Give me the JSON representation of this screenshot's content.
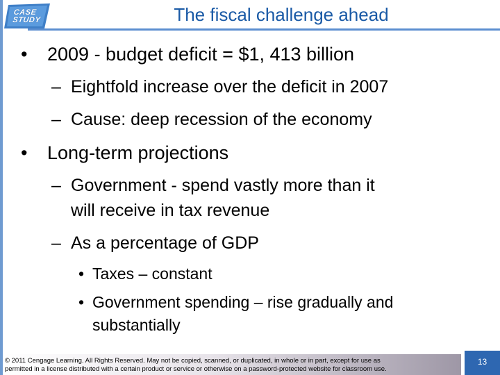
{
  "logo": {
    "line1": "CASE",
    "line2": "STUDY"
  },
  "title": "The fiscal challenge ahead",
  "bullets": [
    {
      "marker": "•",
      "text": "2009 - budget deficit = $1, 413 billion"
    },
    {
      "marker": "–",
      "text": "Eightfold increase over the deficit in 2007"
    },
    {
      "marker": "–",
      "text": "Cause: deep recession of the economy"
    },
    {
      "marker": "•",
      "text": "Long-term projections"
    },
    {
      "marker": "–",
      "text": "Government - spend vastly more than it",
      "cont": "will receive in tax revenue"
    },
    {
      "marker": "–",
      "text": "As a percentage of GDP"
    },
    {
      "marker": "•",
      "text": "Taxes – constant"
    },
    {
      "marker": "•",
      "text": "Government spending – rise gradually and",
      "cont": "substantially"
    }
  ],
  "footer": {
    "line1": "© 2011 Cengage Learning. All Rights Reserved. May not be copied, scanned, or duplicated, in whole or in part, except for use as",
    "line2": "permitted in a license distributed with a certain product or service or otherwise on a password-protected website for classroom use."
  },
  "page_number": "13",
  "colors": {
    "accent": "#1a5aa6",
    "rule": "#5b8ed0",
    "page_box": "#2e67b1"
  }
}
